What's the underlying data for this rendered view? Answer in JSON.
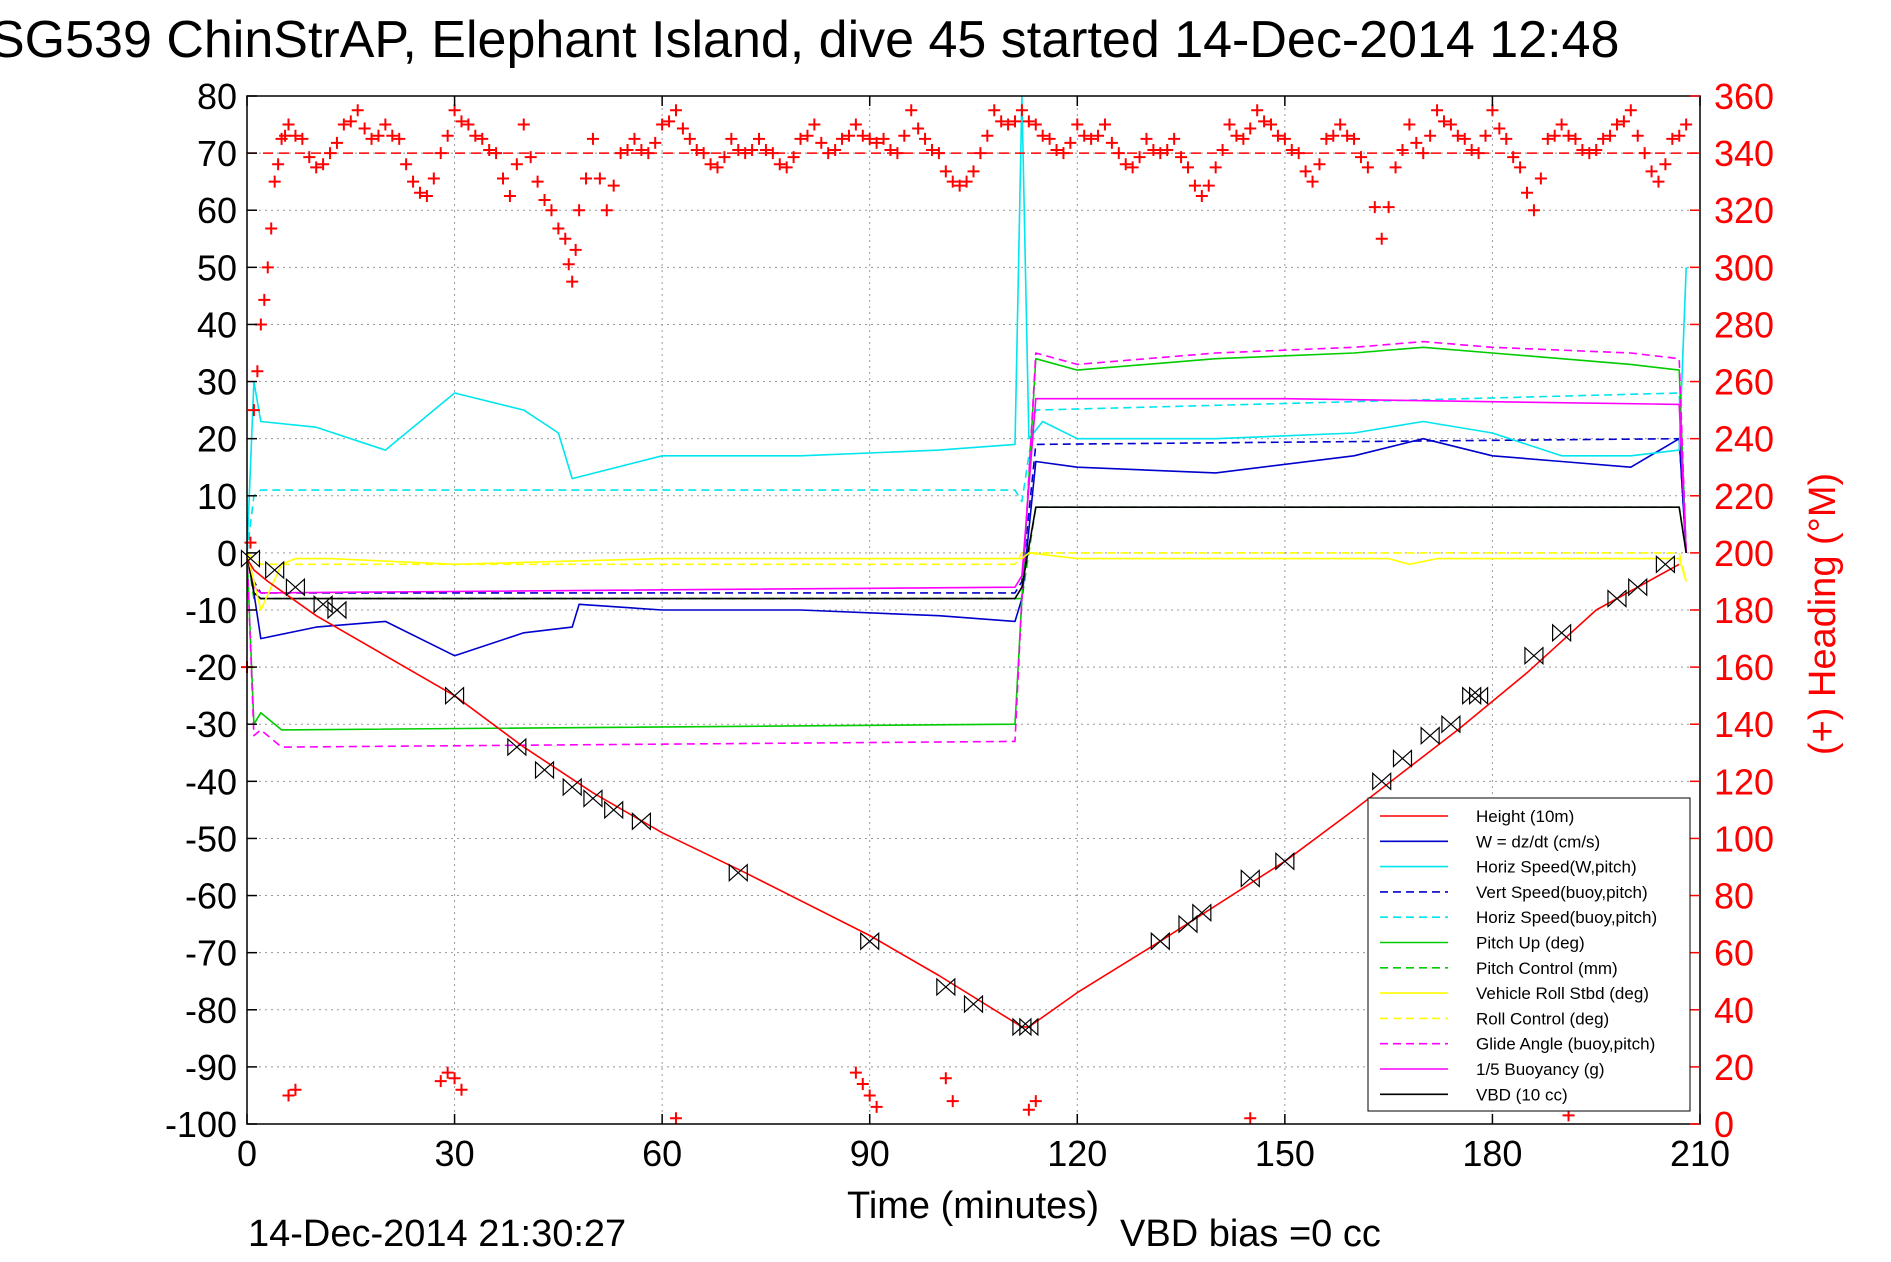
{
  "title": "SG539 ChinStrAP, Elephant Island, dive 45 started 14-Dec-2014 12:48",
  "timestamp": "14-Dec-2014 21:30:27",
  "vbd_bias": "VBD bias =0 cc",
  "chart_data": {
    "type": "line",
    "xlabel": "Time (minutes)",
    "ylabel": "",
    "y2label": "(+) Heading (°M)",
    "xlim": [
      0,
      210
    ],
    "ylim": [
      -100,
      80
    ],
    "y2lim": [
      0,
      360
    ],
    "x_ticks": [
      0,
      30,
      60,
      90,
      120,
      150,
      180,
      210
    ],
    "y_ticks": [
      -100,
      -90,
      -80,
      -70,
      -60,
      -50,
      -40,
      -30,
      -20,
      -10,
      0,
      10,
      20,
      30,
      40,
      50,
      60,
      70,
      80
    ],
    "y2_ticks": [
      0,
      20,
      40,
      60,
      80,
      100,
      120,
      140,
      160,
      180,
      200,
      220,
      240,
      260,
      280,
      300,
      320,
      340,
      360
    ],
    "grid": true,
    "legend_position": "bottom-right",
    "heading_reference": 340,
    "series": [
      {
        "name": "Height (10m)",
        "color": "#ff0000",
        "style": "solid",
        "x": [
          0,
          1,
          3,
          10,
          30,
          40,
          50,
          60,
          72,
          90,
          100,
          112,
          113,
          120,
          132,
          150,
          160,
          175,
          185,
          195,
          207
        ],
        "y": [
          -1,
          -3,
          -5,
          -11,
          -25,
          -34,
          -42,
          -49,
          -56,
          -67,
          -74,
          -83,
          -83,
          -77,
          -68,
          -54,
          -45,
          -31,
          -21,
          -10,
          -2
        ]
      },
      {
        "name": "W = dz/dt (cm/s)",
        "color": "#0000cc",
        "style": "solid",
        "x": [
          0,
          1,
          2,
          10,
          20,
          30,
          40,
          47,
          48,
          60,
          80,
          100,
          111,
          112,
          114,
          120,
          140,
          160,
          170,
          180,
          190,
          200,
          207,
          208
        ],
        "y": [
          0,
          -7,
          -15,
          -13,
          -12,
          -18,
          -14,
          -13,
          -9,
          -10,
          -10,
          -11,
          -12,
          -8,
          16,
          15,
          14,
          17,
          20,
          17,
          16,
          15,
          20,
          0
        ]
      },
      {
        "name": "Horiz Speed(W,pitch)",
        "color": "#00e5ee",
        "style": "solid",
        "x": [
          0,
          1,
          2,
          10,
          20,
          30,
          40,
          45,
          47,
          60,
          80,
          100,
          111,
          112,
          113,
          115,
          120,
          140,
          160,
          170,
          180,
          190,
          200,
          207,
          208
        ],
        "y": [
          0,
          30,
          23,
          22,
          18,
          28,
          25,
          21,
          13,
          17,
          17,
          18,
          19,
          80,
          20,
          23,
          20,
          20,
          21,
          23,
          21,
          17,
          17,
          18,
          50
        ]
      },
      {
        "name": "Vert Speed(buoy,pitch)",
        "color": "#0000cc",
        "style": "dashed",
        "x": [
          0,
          1,
          2,
          111,
          112,
          114,
          207,
          208
        ],
        "y": [
          0,
          -5,
          -7,
          -7,
          -5,
          19,
          20,
          0
        ]
      },
      {
        "name": "Horiz Speed(buoy,pitch)",
        "color": "#00e5ee",
        "style": "dashed",
        "x": [
          0,
          1,
          2,
          111,
          112,
          114,
          207,
          208
        ],
        "y": [
          0,
          10,
          11,
          11,
          9,
          25,
          28,
          0
        ]
      },
      {
        "name": "Pitch Up (deg)",
        "color": "#00cc00",
        "style": "solid",
        "x": [
          0,
          1,
          2,
          5,
          111,
          112,
          114,
          120,
          140,
          160,
          170,
          180,
          200,
          207,
          208
        ],
        "y": [
          0,
          -30,
          -28,
          -31,
          -30,
          -8,
          34,
          32,
          34,
          35,
          36,
          35,
          33,
          32,
          0
        ]
      },
      {
        "name": "Pitch Control (mm)",
        "color": "#00cc00",
        "style": "dashed",
        "x": [
          0,
          1,
          2,
          111,
          112,
          114,
          207,
          208
        ],
        "y": [
          0,
          -8,
          -8,
          -8,
          -8,
          8,
          8,
          0
        ]
      },
      {
        "name": "Vehicle Roll Stbd (deg)",
        "color": "#ffff00",
        "style": "solid",
        "x": [
          0,
          2,
          5,
          7,
          12,
          30,
          60,
          90,
          111,
          112,
          113,
          120,
          150,
          165,
          168,
          172,
          178,
          190,
          207,
          208
        ],
        "y": [
          0,
          -10,
          -2,
          -1,
          -1,
          -2,
          -1,
          -1,
          -1,
          -1,
          0,
          -1,
          -1,
          -1,
          -2,
          -1,
          -1,
          -1,
          -1,
          -5
        ]
      },
      {
        "name": "Roll Control (deg)",
        "color": "#ffff00",
        "style": "dashed",
        "x": [
          0,
          2,
          111,
          112,
          207,
          208
        ],
        "y": [
          0,
          -2,
          -2,
          0,
          0,
          -5
        ]
      },
      {
        "name": "Glide Angle (buoy,pitch)",
        "color": "#ff00ff",
        "style": "dashed",
        "x": [
          0,
          1,
          2,
          5,
          111,
          112,
          114,
          120,
          140,
          160,
          170,
          180,
          200,
          207,
          208
        ],
        "y": [
          0,
          -32,
          -31,
          -34,
          -33,
          -8,
          35,
          33,
          35,
          36,
          37,
          36,
          35,
          34,
          0
        ]
      },
      {
        "name": "1/5 Buoyancy (g)",
        "color": "#ff00ff",
        "style": "solid",
        "x": [
          0,
          1,
          2,
          111,
          112,
          114,
          150,
          207,
          208
        ],
        "y": [
          0,
          -6,
          -7,
          -6,
          -4,
          27,
          27,
          26,
          0
        ]
      },
      {
        "name": "VBD (10 cc)",
        "color": "#000000",
        "style": "solid",
        "x": [
          0,
          1,
          2,
          111,
          112,
          114,
          207,
          208
        ],
        "y": [
          0,
          -7,
          -8,
          -8,
          -6,
          8,
          8,
          0
        ]
      }
    ],
    "heading": {
      "name": "(+) Heading (°M)",
      "color": "#ff0000",
      "marker": "+",
      "x": [
        0,
        1,
        2,
        3,
        4,
        5,
        6,
        8,
        10,
        12,
        14,
        16,
        18,
        20,
        22,
        24,
        26,
        28,
        30,
        32,
        34,
        36,
        38,
        40,
        42,
        44,
        46,
        47,
        48,
        50,
        52,
        54,
        56,
        58,
        60,
        62,
        64,
        66,
        68,
        70,
        72,
        74,
        76,
        78,
        80,
        82,
        84,
        86,
        88,
        90,
        92,
        94,
        96,
        98,
        100,
        102,
        104,
        106,
        108,
        110,
        112,
        114,
        116,
        118,
        120,
        122,
        124,
        126,
        128,
        130,
        132,
        134,
        136,
        138,
        140,
        142,
        144,
        146,
        148,
        150,
        152,
        154,
        156,
        158,
        160,
        162,
        164,
        166,
        168,
        170,
        172,
        174,
        176,
        178,
        180,
        182,
        184,
        186,
        188,
        190,
        192,
        194,
        196,
        198,
        200,
        202,
        204,
        206,
        208
      ],
      "y": [
        160,
        250,
        280,
        300,
        330,
        345,
        350,
        345,
        335,
        340,
        350,
        355,
        345,
        350,
        345,
        330,
        325,
        340,
        355,
        350,
        345,
        340,
        325,
        350,
        330,
        320,
        310,
        295,
        320,
        345,
        320,
        340,
        345,
        340,
        350,
        355,
        345,
        340,
        335,
        345,
        340,
        345,
        340,
        335,
        345,
        350,
        340,
        345,
        350,
        345,
        345,
        340,
        355,
        345,
        340,
        330,
        330,
        340,
        355,
        350,
        355,
        350,
        345,
        340,
        350,
        345,
        350,
        340,
        335,
        345,
        340,
        345,
        335,
        325,
        335,
        350,
        345,
        355,
        350,
        345,
        340,
        330,
        345,
        350,
        345,
        335,
        310,
        335,
        350,
        340,
        355,
        350,
        345,
        340,
        355,
        345,
        335,
        320,
        345,
        350,
        345,
        340,
        345,
        350,
        355,
        340,
        330,
        345,
        350
      ]
    },
    "heading_outliers": {
      "x": [
        6,
        7,
        28,
        29,
        30,
        31,
        62,
        88,
        89,
        90,
        91,
        101,
        102,
        113,
        114,
        145,
        191
      ],
      "y": [
        10,
        12,
        15,
        18,
        16,
        12,
        2,
        18,
        14,
        10,
        6,
        16,
        8,
        5,
        8,
        2,
        3
      ]
    },
    "apogee_markers": {
      "x": [
        0.5,
        4,
        7,
        11,
        13,
        30,
        39,
        43,
        47,
        50,
        53,
        57,
        71,
        90,
        101,
        105,
        112,
        113,
        132,
        136,
        138,
        145,
        150,
        164,
        167,
        171,
        174,
        177,
        178,
        186,
        190,
        198,
        201,
        205
      ],
      "y": [
        -1,
        -3,
        -6,
        -9,
        -10,
        -25,
        -34,
        -38,
        -41,
        -43,
        -45,
        -47,
        -56,
        -68,
        -76,
        -79,
        -83,
        -83,
        -68,
        -65,
        -63,
        -57,
        -54,
        -40,
        -36,
        -32,
        -30,
        -25,
        -25,
        -18,
        -14,
        -8,
        -6,
        -2
      ]
    },
    "legend_entries": [
      "Height (10m)",
      "W = dz/dt (cm/s)",
      "Horiz Speed(W,pitch)",
      "Vert Speed(buoy,pitch)",
      "Horiz Speed(buoy,pitch)",
      "Pitch Up (deg)",
      "Pitch Control (mm)",
      "Vehicle Roll Stbd (deg)",
      "Roll Control (deg)",
      "Glide Angle (buoy,pitch)",
      "1/5 Buoyancy (g)",
      "VBD (10 cc)"
    ]
  }
}
